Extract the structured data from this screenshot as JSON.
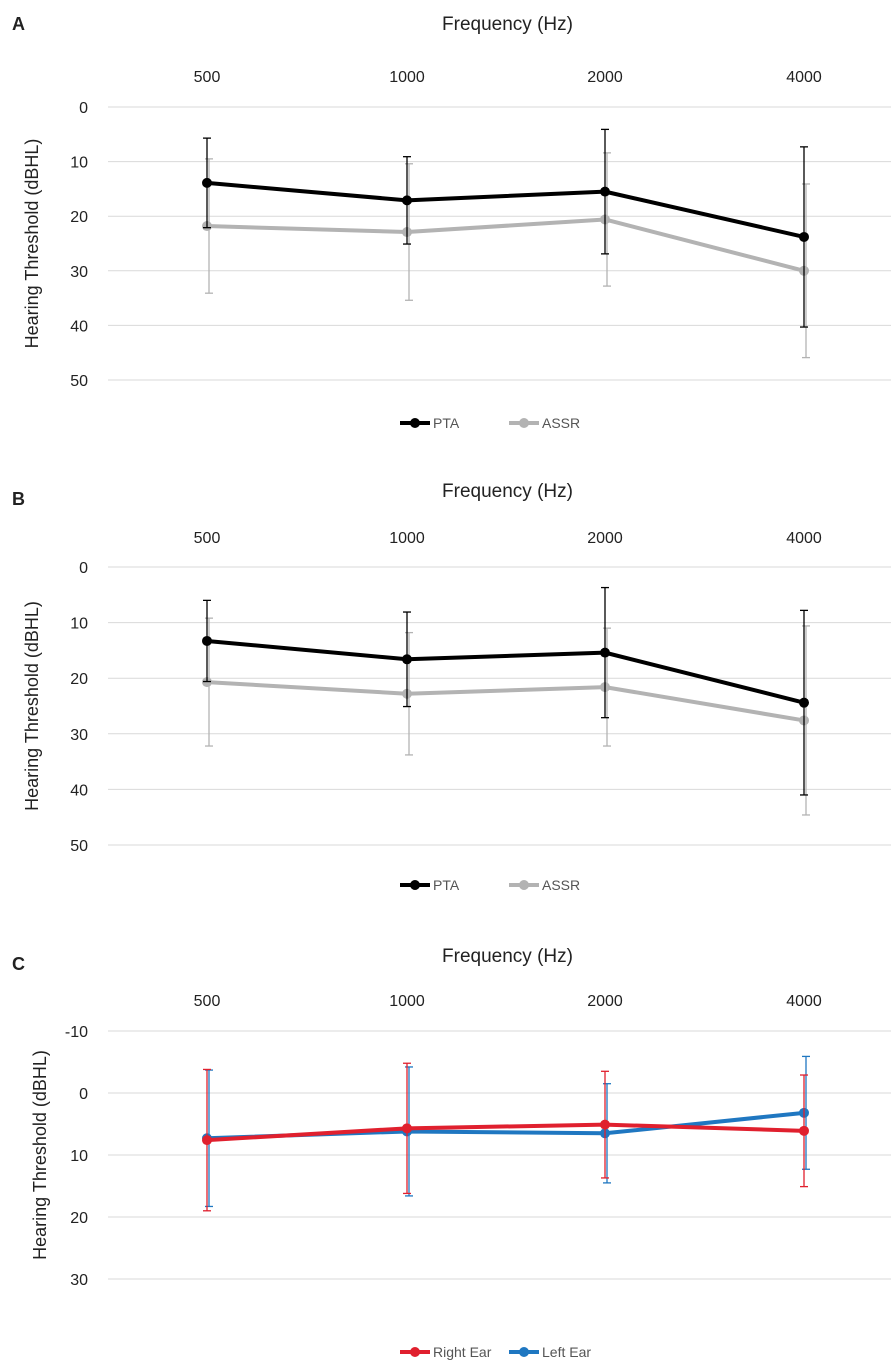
{
  "chart_data": [
    {
      "panel": "A",
      "type": "line",
      "xlabel": "Frequency (Hz)",
      "ylabel": "Hearing Threshold (dBHL)",
      "categories": [
        "500",
        "1000",
        "2000",
        "4000"
      ],
      "ylim": [
        0,
        50
      ],
      "yticks": [
        0,
        10,
        20,
        30,
        40,
        50
      ],
      "y_inverted": true,
      "x_axis_position": "top",
      "grid": true,
      "legend_position": "bottom",
      "series": [
        {
          "name": "PTA",
          "color": "#000000",
          "values": [
            13.9,
            17.1,
            15.5,
            23.8
          ],
          "error": [
            8.2,
            8.0,
            11.4,
            16.5
          ]
        },
        {
          "name": "ASSR",
          "color": "#b3b3b3",
          "values": [
            21.8,
            22.9,
            20.6,
            30.0
          ],
          "error": [
            12.3,
            12.5,
            12.2,
            15.9
          ]
        }
      ]
    },
    {
      "panel": "B",
      "type": "line",
      "xlabel": "Frequency (Hz)",
      "ylabel": "Hearing Threshold (dBHL)",
      "categories": [
        "500",
        "1000",
        "2000",
        "4000"
      ],
      "ylim": [
        0,
        50
      ],
      "yticks": [
        0,
        10,
        20,
        30,
        40,
        50
      ],
      "y_inverted": true,
      "x_axis_position": "top",
      "grid": true,
      "legend_position": "bottom",
      "series": [
        {
          "name": "PTA",
          "color": "#000000",
          "values": [
            13.3,
            16.6,
            15.4,
            24.4
          ],
          "error": [
            7.3,
            8.5,
            11.7,
            16.6
          ]
        },
        {
          "name": "ASSR",
          "color": "#b3b3b3",
          "values": [
            20.7,
            22.8,
            21.6,
            27.6
          ],
          "error": [
            11.5,
            11.0,
            10.6,
            17.0
          ]
        }
      ]
    },
    {
      "panel": "C",
      "type": "line",
      "xlabel": "Frequency (Hz)",
      "ylabel": "Hearing Threshold (dBHL)",
      "categories": [
        "500",
        "1000",
        "2000",
        "4000"
      ],
      "ylim": [
        -10,
        30
      ],
      "yticks": [
        -10,
        0,
        10,
        20,
        30
      ],
      "y_inverted": true,
      "x_axis_position": "top",
      "grid": true,
      "legend_position": "bottom",
      "series": [
        {
          "name": "Right Ear",
          "color": "#e0202e",
          "values": [
            7.6,
            5.7,
            5.1,
            6.1
          ],
          "error": [
            11.4,
            10.5,
            8.6,
            9.0
          ]
        },
        {
          "name": "Left Ear",
          "color": "#1f77c1",
          "values": [
            7.3,
            6.2,
            6.5,
            3.2
          ],
          "error": [
            11.0,
            10.4,
            8.0,
            9.1
          ]
        }
      ]
    }
  ]
}
